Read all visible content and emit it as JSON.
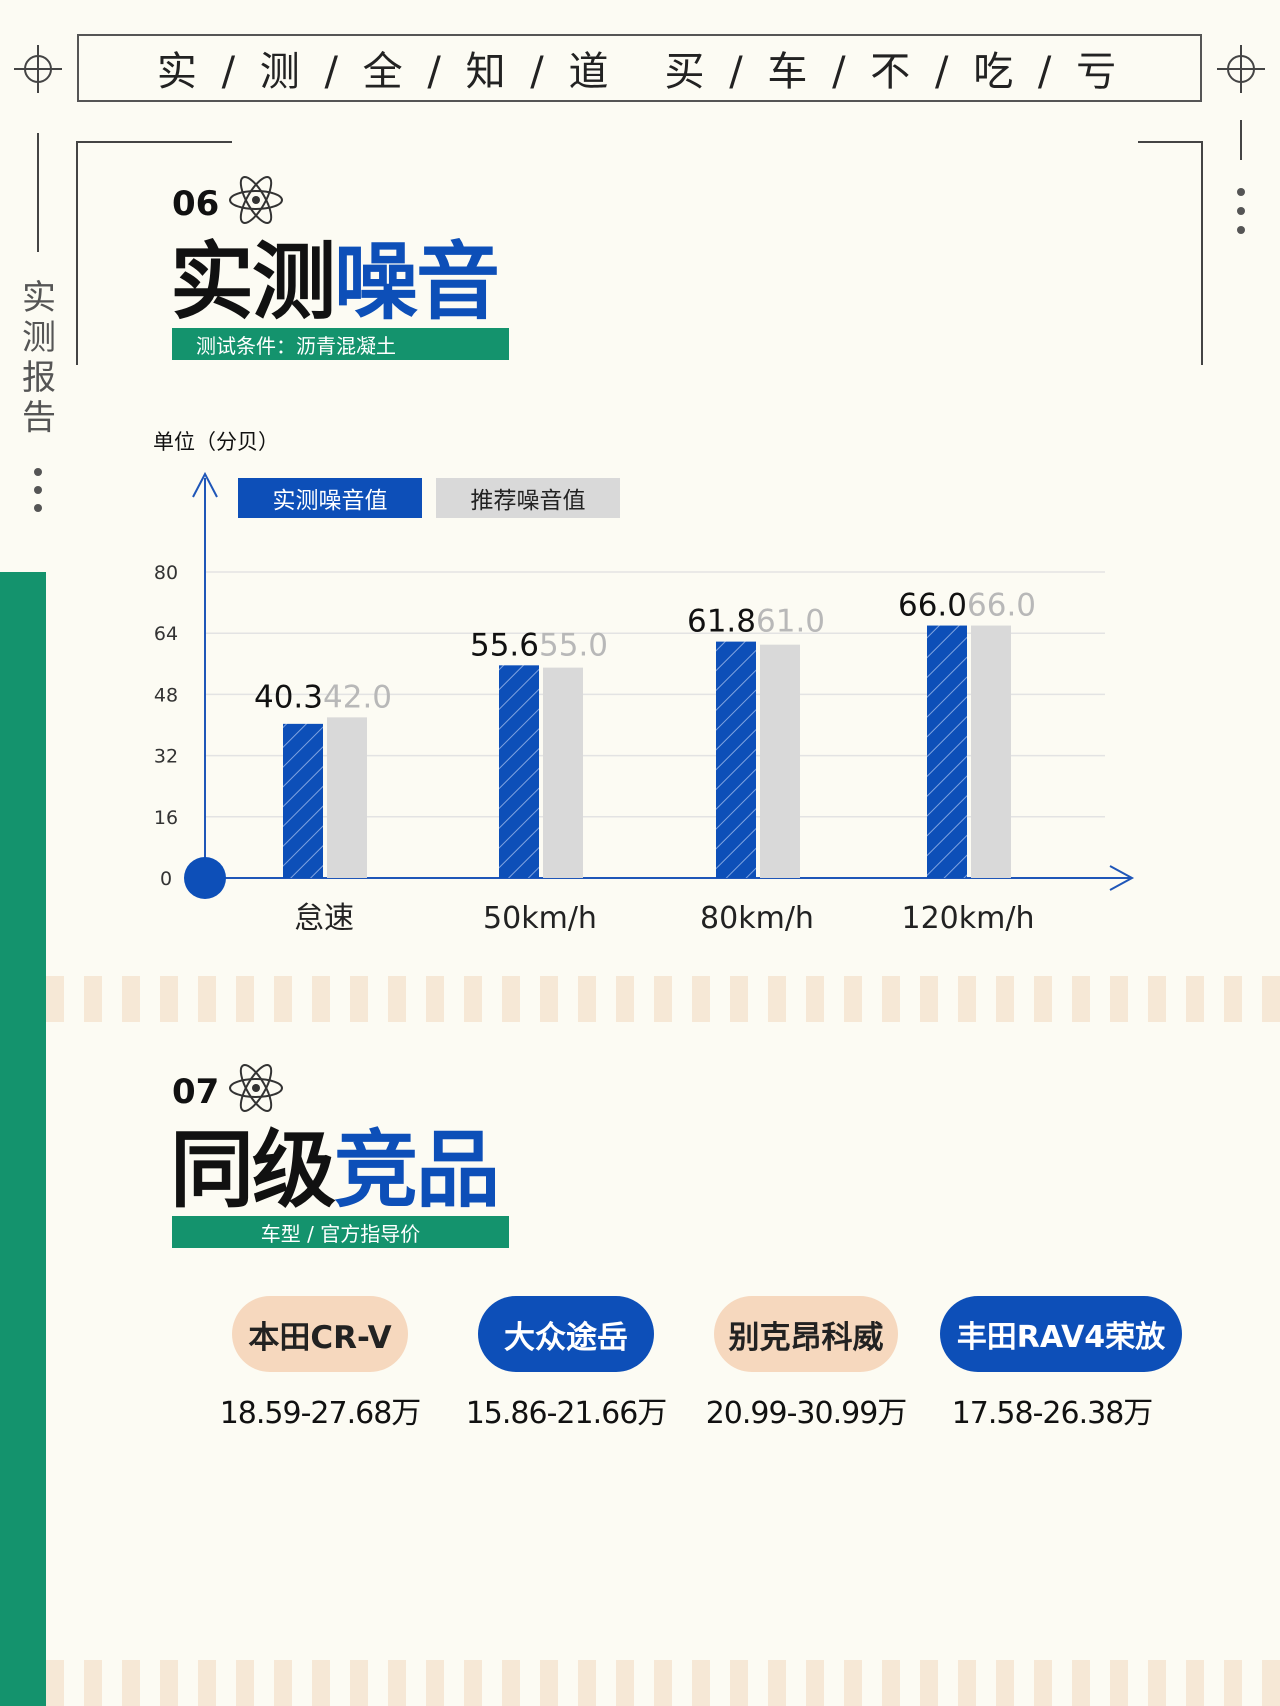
{
  "header": {
    "banner_left": "实 / 测 / 全 / 知 / 道",
    "banner_right": "买 / 车 / 不 / 吃 / 亏"
  },
  "side_label": "实测报告",
  "section06": {
    "number": "06",
    "title_black": "实测",
    "title_blue": "噪音",
    "subtitle": "测试条件：沥青混凝土"
  },
  "chart_data": {
    "type": "bar",
    "unit_label": "单位（分贝）",
    "categories": [
      "怠速",
      "50km/h",
      "80km/h",
      "120km/h"
    ],
    "series": [
      {
        "name": "实测噪音值",
        "values": [
          40.3,
          55.6,
          61.8,
          66.0
        ],
        "color": "#0d4fb8"
      },
      {
        "name": "推荐噪音值",
        "values": [
          42.0,
          55.0,
          61.0,
          66.0
        ],
        "color": "#d9d9d9"
      }
    ],
    "y_ticks": [
      "0",
      "16",
      "32",
      "48",
      "64",
      "80"
    ],
    "ylim": [
      0,
      80
    ],
    "grid": true,
    "legend": "top-left"
  },
  "section07": {
    "number": "07",
    "title_black": "同级",
    "title_blue": "竞品",
    "subtitle": "车型 / 官方指导价"
  },
  "competitors": [
    {
      "name": "本田CR-V",
      "price": "18.59-27.68万",
      "style": "peach"
    },
    {
      "name": "大众途岳",
      "price": "15.86-21.66万",
      "style": "blue"
    },
    {
      "name": "别克昂科威",
      "price": "20.99-30.99万",
      "style": "peach"
    },
    {
      "name": "丰田RAV4荣放",
      "price": "17.58-26.38万",
      "style": "blue"
    }
  ]
}
